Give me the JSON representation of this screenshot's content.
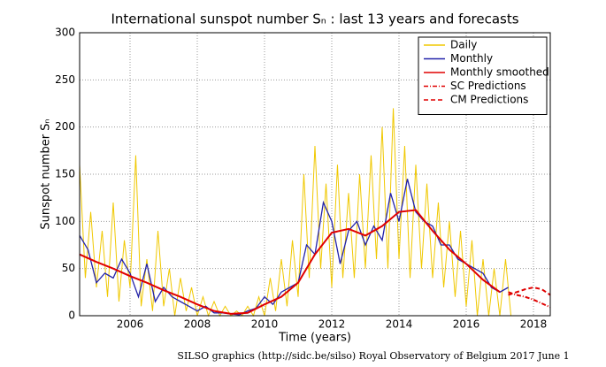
{
  "chart_data": {
    "type": "line",
    "title": "International sunspot number Sₙ : last 13 years and forecasts",
    "y_label": "Sunspot number Sₙ",
    "x_label": "Time (years)",
    "footer": "SILSO graphics (http://sidc.be/silso)  Royal Observatory of Belgium  2017 June 1",
    "xlim": [
      2004.5,
      2018.5
    ],
    "xticks": [
      2006,
      2008,
      2010,
      2012,
      2014,
      2016,
      2018
    ],
    "ylim": [
      0,
      300
    ],
    "yticks": [
      0,
      50,
      100,
      150,
      200,
      250,
      300
    ],
    "grid": true,
    "legend": "upper right",
    "series": [
      {
        "name": "Daily",
        "color": "#f0c800",
        "style": "solid",
        "x": [
          2004.5,
          2004.67,
          2004.83,
          2005,
          2005.17,
          2005.33,
          2005.5,
          2005.67,
          2005.83,
          2006,
          2006.17,
          2006.33,
          2006.5,
          2006.67,
          2006.83,
          2007,
          2007.17,
          2007.33,
          2007.5,
          2007.67,
          2007.83,
          2008,
          2008.17,
          2008.33,
          2008.5,
          2008.67,
          2008.83,
          2009,
          2009.17,
          2009.33,
          2009.5,
          2009.67,
          2009.83,
          2010,
          2010.17,
          2010.33,
          2010.5,
          2010.67,
          2010.83,
          2011,
          2011.17,
          2011.33,
          2011.5,
          2011.67,
          2011.83,
          2012,
          2012.17,
          2012.33,
          2012.5,
          2012.67,
          2012.83,
          2013,
          2013.17,
          2013.33,
          2013.5,
          2013.67,
          2013.83,
          2014,
          2014.17,
          2014.33,
          2014.5,
          2014.67,
          2014.83,
          2015,
          2015.17,
          2015.33,
          2015.5,
          2015.67,
          2015.83,
          2016,
          2016.17,
          2016.33,
          2016.5,
          2016.67,
          2016.83,
          2017,
          2017.17,
          2017.33
        ],
        "values": [
          160,
          40,
          110,
          30,
          90,
          20,
          120,
          15,
          80,
          30,
          170,
          10,
          60,
          5,
          90,
          10,
          50,
          0,
          40,
          5,
          30,
          0,
          20,
          0,
          15,
          0,
          10,
          0,
          5,
          0,
          10,
          0,
          20,
          0,
          40,
          5,
          60,
          10,
          80,
          20,
          150,
          40,
          180,
          50,
          140,
          30,
          160,
          40,
          130,
          40,
          150,
          50,
          170,
          60,
          200,
          50,
          220,
          60,
          180,
          40,
          160,
          50,
          140,
          40,
          120,
          30,
          100,
          20,
          90,
          10,
          80,
          0,
          60,
          0,
          50,
          0,
          60,
          0
        ]
      },
      {
        "name": "Monthly",
        "color": "#2222aa",
        "style": "solid",
        "x": [
          2004.5,
          2004.75,
          2005,
          2005.25,
          2005.5,
          2005.75,
          2006,
          2006.25,
          2006.5,
          2006.75,
          2007,
          2007.25,
          2007.5,
          2007.75,
          2008,
          2008.25,
          2008.5,
          2008.75,
          2009,
          2009.25,
          2009.5,
          2009.75,
          2010,
          2010.25,
          2010.5,
          2010.75,
          2011,
          2011.25,
          2011.5,
          2011.75,
          2012,
          2012.25,
          2012.5,
          2012.75,
          2013,
          2013.25,
          2013.5,
          2013.75,
          2014,
          2014.25,
          2014.5,
          2014.75,
          2015,
          2015.25,
          2015.5,
          2015.75,
          2016,
          2016.25,
          2016.5,
          2016.75,
          2017,
          2017.25
        ],
        "values": [
          85,
          70,
          35,
          45,
          40,
          60,
          45,
          20,
          55,
          15,
          30,
          20,
          15,
          10,
          5,
          10,
          3,
          3,
          2,
          1,
          5,
          8,
          20,
          12,
          25,
          30,
          35,
          75,
          65,
          120,
          100,
          55,
          90,
          100,
          75,
          95,
          80,
          130,
          100,
          145,
          110,
          100,
          95,
          75,
          75,
          60,
          55,
          50,
          45,
          30,
          25,
          30
        ]
      },
      {
        "name": "Monthly smoothed",
        "color": "#e00000",
        "style": "solid",
        "x": [
          2004.5,
          2005,
          2005.5,
          2006,
          2006.5,
          2007,
          2007.5,
          2008,
          2008.5,
          2009,
          2009.5,
          2010,
          2010.5,
          2011,
          2011.5,
          2012,
          2012.5,
          2013,
          2013.5,
          2014,
          2014.5,
          2015,
          2015.5,
          2016,
          2016.5,
          2017
        ],
        "values": [
          65,
          57,
          50,
          42,
          35,
          27,
          20,
          12,
          5,
          2,
          3,
          12,
          20,
          35,
          65,
          88,
          92,
          85,
          95,
          110,
          112,
          90,
          70,
          55,
          38,
          25
        ]
      },
      {
        "name": "SC Predictions",
        "color": "#e00000",
        "style": "dashdot",
        "x": [
          2017.25,
          2017.5,
          2017.75,
          2018,
          2018.25,
          2018.5
        ],
        "values": [
          25,
          22,
          20,
          17,
          13,
          9
        ]
      },
      {
        "name": "CM Predictions",
        "color": "#e00000",
        "style": "dashed",
        "x": [
          2017.25,
          2017.5,
          2017.75,
          2018,
          2018.25,
          2018.5
        ],
        "values": [
          22,
          25,
          28,
          30,
          28,
          22
        ]
      }
    ]
  }
}
